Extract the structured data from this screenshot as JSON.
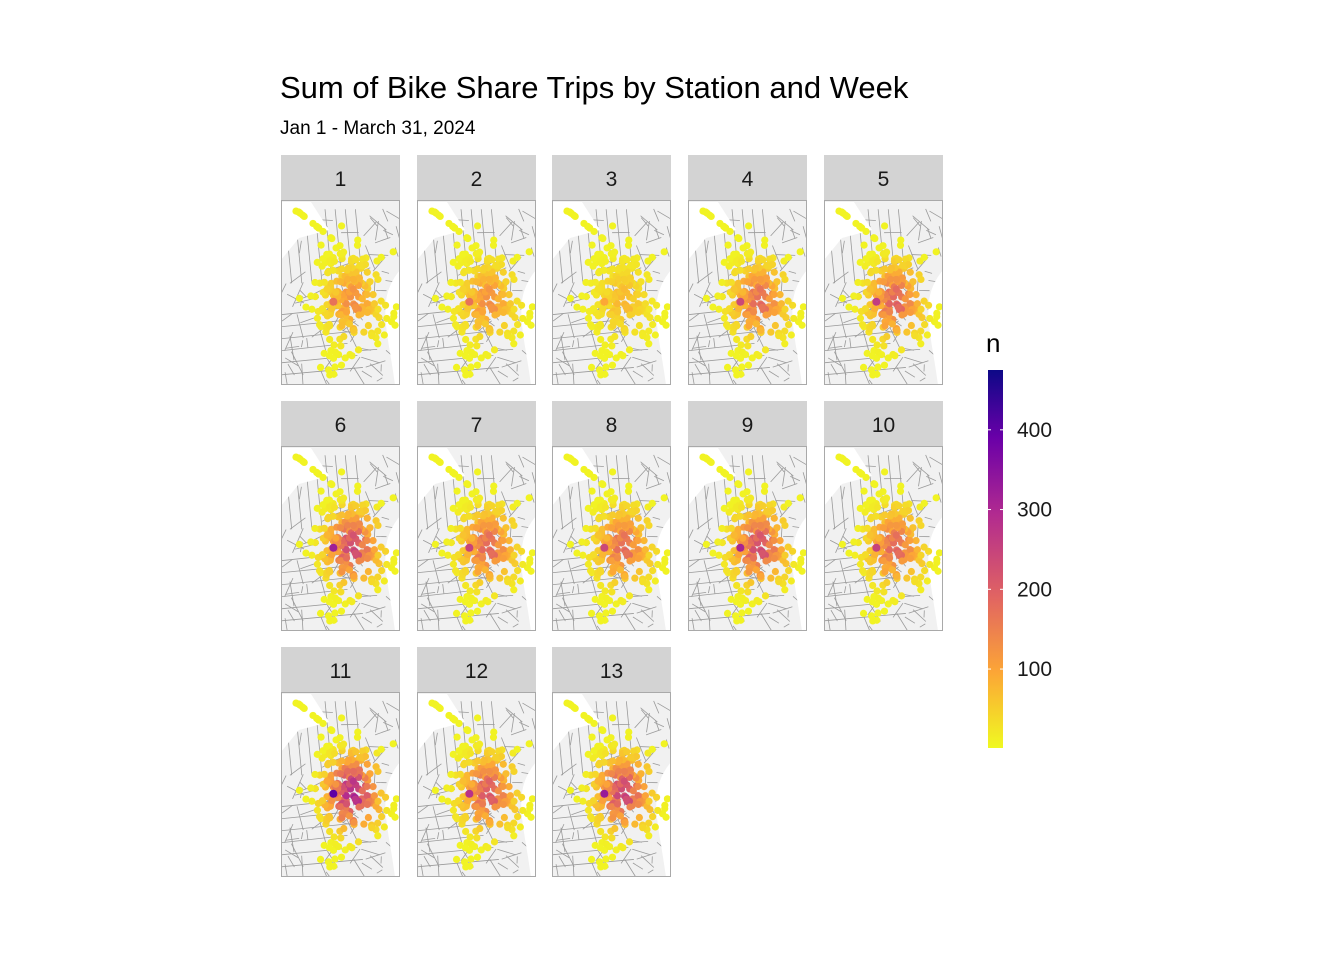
{
  "chart_data": {
    "type": "heatmap",
    "subtype": "faceted station map (points colored by trip count)",
    "title": "Sum of Bike Share Trips by Station and Week",
    "subtitle": "Jan 1 - March 31, 2024",
    "facet_labels": [
      "1",
      "2",
      "3",
      "4",
      "5",
      "6",
      "7",
      "8",
      "9",
      "10",
      "11",
      "12",
      "13"
    ],
    "layout": {
      "columns": 5,
      "rows": 3
    },
    "legend": {
      "title": "n",
      "placement": "right",
      "range": [
        1,
        475
      ],
      "ticks": [
        100,
        200,
        300,
        400
      ],
      "tick_labels": [
        "100",
        "200",
        "300",
        "400"
      ],
      "colorscale": [
        "#0d0887",
        "#6a00a8",
        "#b12a90",
        "#e16462",
        "#fca636",
        "#f0f921"
      ]
    },
    "facet_peak_n": [
      170,
      170,
      95,
      240,
      260,
      320,
      250,
      240,
      310,
      250,
      400,
      280,
      330
    ],
    "colors": {
      "panel_background": "#f1f1f1",
      "strip_background": "#d3d3d3",
      "streets": "#9a9a9a"
    }
  }
}
